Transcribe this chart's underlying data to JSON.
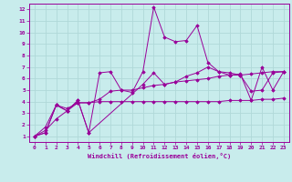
{
  "xlabel": "Windchill (Refroidissement éolien,°C)",
  "bg_color": "#c8ecec",
  "grid_color": "#b0d8d8",
  "line_color": "#990099",
  "xlim": [
    -0.5,
    23.5
  ],
  "ylim": [
    0.5,
    12.5
  ],
  "xticks": [
    0,
    1,
    2,
    3,
    4,
    5,
    6,
    7,
    8,
    9,
    10,
    11,
    12,
    13,
    14,
    15,
    16,
    17,
    18,
    19,
    20,
    21,
    22,
    23
  ],
  "yticks": [
    1,
    2,
    3,
    4,
    5,
    6,
    7,
    8,
    9,
    10,
    11,
    12
  ],
  "line1_x": [
    0,
    1,
    2,
    3,
    4,
    5,
    6,
    7,
    8,
    9,
    10,
    11,
    12,
    13,
    14,
    15,
    16,
    17,
    18,
    19,
    20,
    21,
    22,
    23
  ],
  "line1_y": [
    1.0,
    1.3,
    3.7,
    3.2,
    4.1,
    1.3,
    6.5,
    6.6,
    5.0,
    4.8,
    6.6,
    12.2,
    9.6,
    9.2,
    9.3,
    10.6,
    7.4,
    6.6,
    6.3,
    6.4,
    4.1,
    7.0,
    5.0,
    6.6
  ],
  "line2_x": [
    0,
    1,
    2,
    3,
    4,
    5,
    6,
    7,
    8,
    9,
    10,
    11,
    12,
    13,
    14,
    15,
    16,
    17,
    18,
    19,
    20,
    21,
    22,
    23
  ],
  "line2_y": [
    1.0,
    1.5,
    2.5,
    3.2,
    3.9,
    3.9,
    4.2,
    4.9,
    5.0,
    5.0,
    5.2,
    5.4,
    5.5,
    5.7,
    5.8,
    5.9,
    6.0,
    6.2,
    6.3,
    6.3,
    6.4,
    6.5,
    6.6,
    6.6
  ],
  "line3_x": [
    0,
    1,
    2,
    3,
    4,
    5,
    6,
    7,
    8,
    9,
    10,
    11,
    12,
    13,
    14,
    15,
    16,
    17,
    18,
    19,
    20,
    21,
    22,
    23
  ],
  "line3_y": [
    1.0,
    1.8,
    3.7,
    3.4,
    3.9,
    3.9,
    4.0,
    4.0,
    4.0,
    4.0,
    4.0,
    4.0,
    4.0,
    4.0,
    4.0,
    4.0,
    4.0,
    4.0,
    4.1,
    4.1,
    4.1,
    4.2,
    4.2,
    4.3
  ],
  "line4_x": [
    0,
    1,
    2,
    3,
    4,
    5,
    10,
    11,
    12,
    13,
    14,
    15,
    16,
    17,
    18,
    19,
    20,
    21,
    22,
    23
  ],
  "line4_y": [
    1.0,
    1.3,
    3.7,
    3.2,
    4.1,
    1.3,
    5.5,
    6.5,
    5.5,
    5.7,
    6.2,
    6.5,
    7.0,
    6.6,
    6.5,
    6.3,
    4.9,
    5.0,
    6.5,
    6.6
  ]
}
